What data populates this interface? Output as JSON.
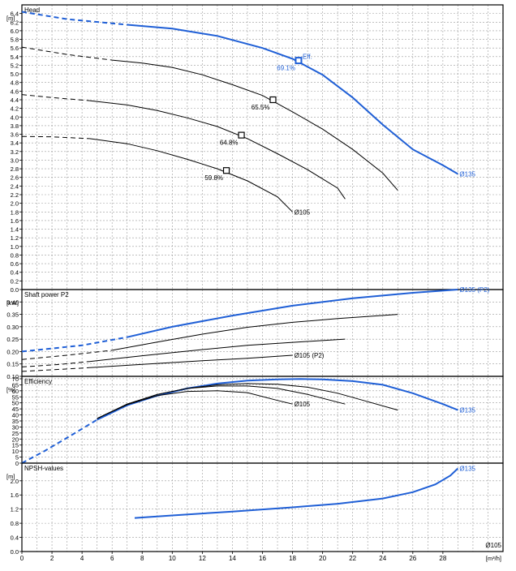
{
  "x_axis": {
    "unit": "[m³/h]",
    "min": 0,
    "max": 32,
    "ticks": [
      0,
      2,
      4,
      6,
      8,
      10,
      12,
      14,
      16,
      18,
      20,
      22,
      24,
      26,
      28
    ]
  },
  "footer_label": "Ø105",
  "colors": {
    "accent": "#1f5fd6",
    "curve": "#000000",
    "grid": "#9a9a9a"
  },
  "chart_data": [
    {
      "type": "line",
      "title": "Head",
      "ylabel": "[m]",
      "ylim": [
        0,
        6.6
      ],
      "yticks": [
        "0.0",
        "0.2",
        "0.4",
        "0.6",
        "0.8",
        "1.0",
        "1.2",
        "1.4",
        "1.6",
        "1.8",
        "2.0",
        "2.2",
        "2.4",
        "2.6",
        "2.8",
        "3.0",
        "3.2",
        "3.4",
        "3.6",
        "3.8",
        "4.0",
        "4.2",
        "4.4",
        "4.6",
        "4.8",
        "5.0",
        "5.2",
        "5.4",
        "5.6",
        "5.8",
        "6.0",
        "6.2",
        "6.4"
      ],
      "series": [
        {
          "name": "Ø135",
          "color": "accent",
          "dashed_until": 7,
          "points": [
            [
              0,
              6.44
            ],
            [
              3,
              6.27
            ],
            [
              7,
              6.14
            ],
            [
              10,
              6.05
            ],
            [
              13,
              5.88
            ],
            [
              16,
              5.6
            ],
            [
              18,
              5.35
            ],
            [
              20,
              4.98
            ],
            [
              22,
              4.45
            ],
            [
              24,
              3.82
            ],
            [
              26,
              3.25
            ],
            [
              28,
              2.88
            ],
            [
              29,
              2.68
            ]
          ]
        },
        {
          "name": "",
          "color": "curve",
          "dashed_until": 6,
          "points": [
            [
              0,
              5.62
            ],
            [
              3,
              5.45
            ],
            [
              6,
              5.32
            ],
            [
              8,
              5.25
            ],
            [
              10,
              5.15
            ],
            [
              12,
              4.98
            ],
            [
              14,
              4.75
            ],
            [
              16,
              4.5
            ],
            [
              18,
              4.12
            ],
            [
              20,
              3.72
            ],
            [
              22,
              3.25
            ],
            [
              24,
              2.7
            ],
            [
              25,
              2.3
            ]
          ]
        },
        {
          "name": "",
          "color": "curve",
          "dashed_until": 4.5,
          "points": [
            [
              0,
              4.52
            ],
            [
              2,
              4.45
            ],
            [
              4.5,
              4.38
            ],
            [
              7,
              4.28
            ],
            [
              9,
              4.15
            ],
            [
              11,
              3.98
            ],
            [
              13,
              3.78
            ],
            [
              15,
              3.5
            ],
            [
              17,
              3.15
            ],
            [
              19,
              2.78
            ],
            [
              21,
              2.35
            ],
            [
              21.5,
              2.1
            ]
          ]
        },
        {
          "name": "Ø105",
          "color": "curve",
          "dashed_until": 4.5,
          "points": [
            [
              0,
              3.55
            ],
            [
              2,
              3.54
            ],
            [
              4.5,
              3.5
            ],
            [
              7,
              3.38
            ],
            [
              9,
              3.22
            ],
            [
              11,
              3.02
            ],
            [
              13,
              2.8
            ],
            [
              15,
              2.52
            ],
            [
              17,
              2.15
            ],
            [
              18,
              1.8
            ]
          ]
        }
      ],
      "markers": [
        {
          "x": 18.4,
          "y": 5.31,
          "label": "69.1%",
          "color": "accent",
          "extra": "Eff."
        },
        {
          "x": 16.7,
          "y": 4.4,
          "label": "65.5%",
          "color": "curve"
        },
        {
          "x": 14.6,
          "y": 3.58,
          "label": "64.8%",
          "color": "curve"
        },
        {
          "x": 13.6,
          "y": 2.76,
          "label": "59.8%",
          "color": "curve"
        }
      ]
    },
    {
      "type": "line",
      "title": "Shaft power P2",
      "ylabel": "[kW]",
      "ylim": [
        0.1,
        0.45
      ],
      "yticks": [
        "0.10",
        "0.15",
        "0.20",
        "0.25",
        "0.30",
        "0.35",
        "0.40"
      ],
      "series": [
        {
          "name": "Ø135 (P2)",
          "color": "accent",
          "dashed_until": 7,
          "points": [
            [
              0,
              0.2
            ],
            [
              4,
              0.225
            ],
            [
              7,
              0.258
            ],
            [
              10,
              0.3
            ],
            [
              14,
              0.345
            ],
            [
              18,
              0.385
            ],
            [
              22,
              0.415
            ],
            [
              26,
              0.437
            ],
            [
              29,
              0.45
            ]
          ]
        },
        {
          "name": "",
          "color": "curve",
          "dashed_until": 6,
          "points": [
            [
              0,
              0.168
            ],
            [
              3,
              0.185
            ],
            [
              6,
              0.205
            ],
            [
              9,
              0.238
            ],
            [
              12,
              0.27
            ],
            [
              15,
              0.298
            ],
            [
              18,
              0.318
            ],
            [
              21,
              0.333
            ],
            [
              25,
              0.35
            ]
          ]
        },
        {
          "name": "",
          "color": "curve",
          "dashed_until": 4.5,
          "points": [
            [
              0,
              0.138
            ],
            [
              2.5,
              0.148
            ],
            [
              4.5,
              0.16
            ],
            [
              8,
              0.183
            ],
            [
              12,
              0.208
            ],
            [
              15,
              0.225
            ],
            [
              18,
              0.237
            ],
            [
              21.5,
              0.25
            ]
          ]
        },
        {
          "name": "Ø105 (P2)",
          "color": "curve",
          "dashed_until": 4.5,
          "points": [
            [
              0,
              0.12
            ],
            [
              2.5,
              0.128
            ],
            [
              4.5,
              0.135
            ],
            [
              8,
              0.148
            ],
            [
              12,
              0.163
            ],
            [
              15,
              0.173
            ],
            [
              18,
              0.185
            ]
          ]
        }
      ]
    },
    {
      "type": "line",
      "title": "Efficiency",
      "ylabel": "[%]",
      "ylim": [
        0,
        72
      ],
      "yticks": [
        "0",
        "5",
        "10",
        "15",
        "20",
        "25",
        "30",
        "35",
        "40",
        "45",
        "50",
        "55",
        "60",
        "65",
        "70"
      ],
      "series": [
        {
          "name": "Ø135",
          "color": "accent",
          "dashed_until": 5,
          "points": [
            [
              0,
              0
            ],
            [
              1.5,
              10
            ],
            [
              3,
              21
            ],
            [
              5,
              36
            ],
            [
              7,
              48
            ],
            [
              9,
              56
            ],
            [
              11,
              62
            ],
            [
              13,
              66
            ],
            [
              15,
              68.5
            ],
            [
              17,
              69.5
            ],
            [
              18.5,
              69.8
            ],
            [
              20,
              69.5
            ],
            [
              22,
              68
            ],
            [
              24,
              65
            ],
            [
              26,
              58
            ],
            [
              28,
              49
            ],
            [
              29,
              44
            ]
          ]
        },
        {
          "name": "",
          "color": "curve",
          "dashed_until": 5,
          "points": [
            [
              5,
              37
            ],
            [
              7,
              49
            ],
            [
              9,
              57
            ],
            [
              11,
              62
            ],
            [
              13,
              65
            ],
            [
              15,
              66
            ],
            [
              17,
              65.5
            ],
            [
              19,
              63
            ],
            [
              21,
              58
            ],
            [
              23,
              51
            ],
            [
              25,
              44
            ]
          ]
        },
        {
          "name": "",
          "color": "curve",
          "dashed_until": 5,
          "points": [
            [
              5,
              37
            ],
            [
              7,
              49
            ],
            [
              9,
              57
            ],
            [
              11,
              62
            ],
            [
              13,
              64
            ],
            [
              15,
              64
            ],
            [
              17,
              62
            ],
            [
              19,
              57
            ],
            [
              21.5,
              49
            ]
          ]
        },
        {
          "name": "Ø105",
          "color": "curve",
          "dashed_until": 5,
          "points": [
            [
              5,
              37
            ],
            [
              7,
              48.5
            ],
            [
              9,
              56
            ],
            [
              11,
              59.5
            ],
            [
              13,
              60
            ],
            [
              15,
              58.5
            ],
            [
              17,
              52
            ],
            [
              18,
              49
            ]
          ]
        }
      ]
    },
    {
      "type": "line",
      "title": "NPSH-values",
      "ylabel": "[m]",
      "ylim": [
        0,
        2.5
      ],
      "yticks": [
        "0.0",
        "0.4",
        "0.8",
        "1.2",
        "1.6",
        "2.0"
      ],
      "series": [
        {
          "name": "Ø135",
          "color": "accent",
          "dashed_until": 0,
          "points": [
            [
              7.5,
              0.95
            ],
            [
              10,
              1.02
            ],
            [
              14,
              1.13
            ],
            [
              18,
              1.25
            ],
            [
              21,
              1.35
            ],
            [
              24,
              1.5
            ],
            [
              26,
              1.68
            ],
            [
              27.5,
              1.9
            ],
            [
              28.5,
              2.15
            ],
            [
              29,
              2.35
            ]
          ]
        }
      ]
    }
  ]
}
